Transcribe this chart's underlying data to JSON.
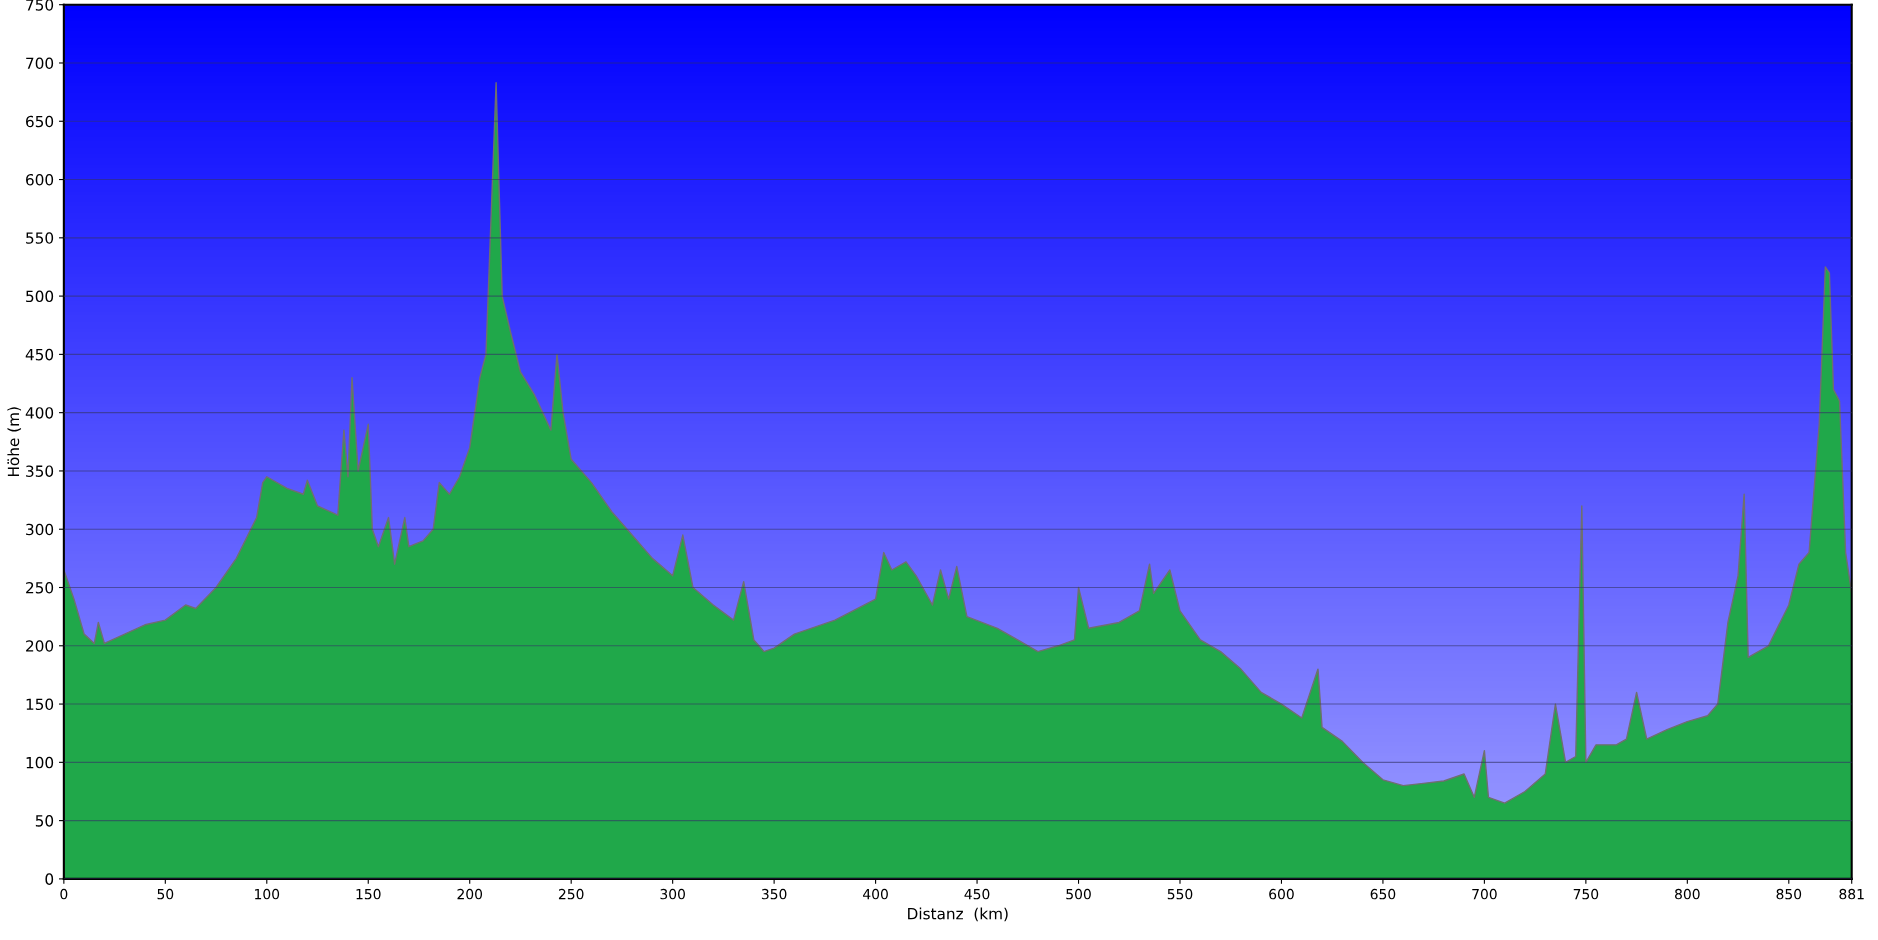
{
  "chart_data": {
    "type": "area",
    "xlabel": "Distanz  (km)",
    "ylabel": "Höhe (m)",
    "xlim": [
      0,
      881
    ],
    "ylim": [
      0,
      750
    ],
    "xticks": [
      0,
      50,
      100,
      150,
      200,
      250,
      300,
      350,
      400,
      450,
      500,
      550,
      600,
      650,
      700,
      750,
      800,
      850,
      881
    ],
    "yticks": [
      0,
      50,
      100,
      150,
      200,
      250,
      300,
      350,
      400,
      450,
      500,
      550,
      600,
      650,
      700,
      750
    ],
    "grid": "y",
    "legend": false,
    "series": [
      {
        "color": "#20a84a",
        "x": [
          0,
          5,
          10,
          15,
          17,
          20,
          30,
          40,
          50,
          60,
          65,
          75,
          85,
          95,
          98,
          100,
          110,
          118,
          120,
          125,
          135,
          138,
          140,
          142,
          145,
          150,
          152,
          155,
          160,
          163,
          168,
          170,
          177,
          182,
          185,
          190,
          195,
          200,
          205,
          208,
          213,
          216,
          220,
          225,
          232,
          240,
          243,
          246,
          250,
          260,
          270,
          280,
          290,
          300,
          305,
          310,
          320,
          330,
          335,
          340,
          345,
          350,
          360,
          380,
          400,
          404,
          408,
          415,
          420,
          428,
          432,
          436,
          440,
          445,
          460,
          470,
          480,
          490,
          498,
          500,
          505,
          520,
          530,
          535,
          537,
          545,
          550,
          560,
          570,
          580,
          590,
          600,
          610,
          618,
          620,
          630,
          640,
          650,
          660,
          670,
          680,
          690,
          695,
          700,
          702,
          710,
          720,
          730,
          735,
          740,
          745,
          748,
          750,
          755,
          765,
          770,
          775,
          780,
          790,
          800,
          810,
          815,
          820,
          825,
          828,
          830,
          840,
          850,
          855,
          860,
          865,
          868,
          870,
          872,
          875,
          878,
          881
        ],
        "values": [
          265,
          240,
          210,
          202,
          220,
          202,
          210,
          218,
          222,
          235,
          232,
          250,
          275,
          310,
          340,
          345,
          335,
          330,
          342,
          320,
          312,
          385,
          345,
          430,
          350,
          390,
          300,
          285,
          310,
          270,
          310,
          285,
          290,
          300,
          340,
          330,
          345,
          370,
          430,
          450,
          683,
          500,
          470,
          435,
          415,
          385,
          450,
          400,
          360,
          340,
          315,
          295,
          275,
          260,
          295,
          250,
          235,
          222,
          255,
          205,
          195,
          198,
          210,
          222,
          240,
          280,
          265,
          272,
          260,
          235,
          265,
          240,
          268,
          225,
          215,
          205,
          195,
          200,
          205,
          250,
          215,
          220,
          230,
          270,
          245,
          265,
          230,
          205,
          195,
          180,
          160,
          150,
          138,
          180,
          130,
          118,
          100,
          85,
          80,
          82,
          84,
          90,
          70,
          110,
          70,
          65,
          75,
          90,
          150,
          100,
          105,
          320,
          100,
          115,
          115,
          120,
          160,
          120,
          128,
          135,
          140,
          150,
          220,
          260,
          330,
          190,
          200,
          235,
          270,
          280,
          390,
          525,
          520,
          420,
          410,
          280,
          245
        ]
      }
    ]
  }
}
